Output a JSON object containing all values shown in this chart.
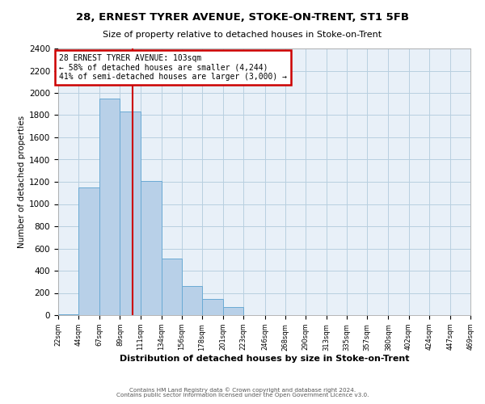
{
  "title": "28, ERNEST TYRER AVENUE, STOKE-ON-TRENT, ST1 5FB",
  "subtitle": "Size of property relative to detached houses in Stoke-on-Trent",
  "xlabel": "Distribution of detached houses by size in Stoke-on-Trent",
  "ylabel": "Number of detached properties",
  "bin_labels": [
    "22sqm",
    "44sqm",
    "67sqm",
    "89sqm",
    "111sqm",
    "134sqm",
    "156sqm",
    "178sqm",
    "201sqm",
    "223sqm",
    "246sqm",
    "268sqm",
    "290sqm",
    "313sqm",
    "335sqm",
    "357sqm",
    "380sqm",
    "402sqm",
    "424sqm",
    "447sqm",
    "469sqm"
  ],
  "bar_values": [
    10,
    1150,
    1950,
    1830,
    1210,
    510,
    265,
    148,
    72,
    0,
    0,
    0,
    0,
    0,
    0,
    0,
    0,
    0,
    0,
    0,
    0
  ],
  "bar_color": "#b8d0e8",
  "bar_edge_color": "#6aaad4",
  "property_line_x": 103,
  "bin_edges_sqm": [
    22,
    44,
    67,
    89,
    111,
    134,
    156,
    178,
    201,
    223,
    246,
    268,
    290,
    313,
    335,
    357,
    380,
    402,
    424,
    447,
    469
  ],
  "annotation_text": "28 ERNEST TYRER AVENUE: 103sqm\n← 58% of detached houses are smaller (4,244)\n41% of semi-detached houses are larger (3,000) →",
  "annotation_box_color": "#ffffff",
  "annotation_box_edge": "#cc0000",
  "vline_color": "#cc0000",
  "ylim": [
    0,
    2400
  ],
  "yticks": [
    0,
    200,
    400,
    600,
    800,
    1000,
    1200,
    1400,
    1600,
    1800,
    2000,
    2200,
    2400
  ],
  "grid_color": "#b8cfe0",
  "background_color": "#e8f0f8",
  "footer_line1": "Contains HM Land Registry data © Crown copyright and database right 2024.",
  "footer_line2": "Contains public sector information licensed under the Open Government Licence v3.0."
}
